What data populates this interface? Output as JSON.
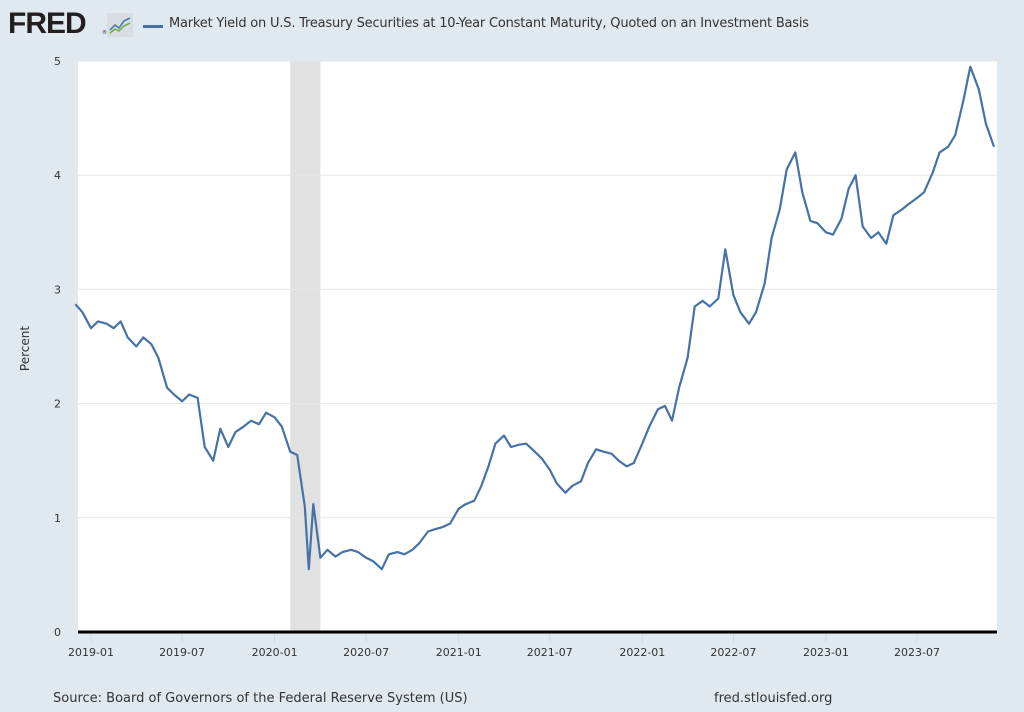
{
  "header": {
    "logo_text": "FRED",
    "logo_registered": "®",
    "logo_icon": "chart-line-icon",
    "legend_label": "Market Yield on U.S. Treasury Securities at 10-Year Constant Maturity, Quoted on an Investment Basis"
  },
  "footer": {
    "source": "Source: Board of Governors of the Federal Reserve System (US)",
    "site": "fred.stlouisfed.org"
  },
  "colors": {
    "series": "#4572a7",
    "background": "#e1e9f0",
    "plot_background": "#ffffff",
    "gridline": "#e6e6e6",
    "recession": "#e1e1e1",
    "zero_line": "#000000"
  },
  "chart_data": {
    "type": "line",
    "title": "Market Yield on U.S. Treasury Securities at 10-Year Constant Maturity, Quoted on an Investment Basis",
    "xlabel": "",
    "ylabel": "Percent",
    "ylim": [
      0,
      5
    ],
    "yticks": [
      "0",
      "1",
      "2",
      "3",
      "4",
      "5"
    ],
    "xlim": [
      "2018-12",
      "2023-12"
    ],
    "xticks": [
      "2019-01",
      "2019-07",
      "2020-01",
      "2020-07",
      "2021-01",
      "2021-07",
      "2022-01",
      "2022-07",
      "2023-01",
      "2023-07"
    ],
    "grid": true,
    "legend_position": "top",
    "recessions": [
      {
        "start": "2020-02",
        "end": "2020-04"
      }
    ],
    "series": [
      {
        "name": "Market Yield on U.S. Treasury Securities at 10-Year Constant Maturity, Quoted on an Investment Basis",
        "x": [
          "2018-12-01",
          "2018-12-15",
          "2019-01-01",
          "2019-01-15",
          "2019-02-01",
          "2019-02-15",
          "2019-03-01",
          "2019-03-15",
          "2019-04-01",
          "2019-04-15",
          "2019-05-01",
          "2019-05-15",
          "2019-06-01",
          "2019-06-15",
          "2019-07-01",
          "2019-07-15",
          "2019-08-01",
          "2019-08-15",
          "2019-09-01",
          "2019-09-15",
          "2019-10-01",
          "2019-10-15",
          "2019-11-01",
          "2019-11-15",
          "2019-12-01",
          "2019-12-15",
          "2020-01-01",
          "2020-01-15",
          "2020-02-01",
          "2020-02-15",
          "2020-03-01",
          "2020-03-09",
          "2020-03-18",
          "2020-04-01",
          "2020-04-15",
          "2020-05-01",
          "2020-05-15",
          "2020-06-01",
          "2020-06-15",
          "2020-07-01",
          "2020-07-15",
          "2020-08-01",
          "2020-08-15",
          "2020-09-01",
          "2020-09-15",
          "2020-10-01",
          "2020-10-15",
          "2020-11-01",
          "2020-11-15",
          "2020-12-01",
          "2020-12-15",
          "2021-01-01",
          "2021-01-15",
          "2021-02-01",
          "2021-02-15",
          "2021-03-01",
          "2021-03-15",
          "2021-04-01",
          "2021-04-15",
          "2021-05-01",
          "2021-05-15",
          "2021-06-01",
          "2021-06-15",
          "2021-07-01",
          "2021-07-15",
          "2021-08-01",
          "2021-08-15",
          "2021-09-01",
          "2021-09-15",
          "2021-10-01",
          "2021-10-15",
          "2021-11-01",
          "2021-11-15",
          "2021-12-01",
          "2021-12-15",
          "2022-01-01",
          "2022-01-15",
          "2022-02-01",
          "2022-02-15",
          "2022-03-01",
          "2022-03-15",
          "2022-04-01",
          "2022-04-15",
          "2022-05-01",
          "2022-05-15",
          "2022-06-01",
          "2022-06-15",
          "2022-07-01",
          "2022-07-15",
          "2022-08-01",
          "2022-08-15",
          "2022-09-01",
          "2022-09-15",
          "2022-10-01",
          "2022-10-15",
          "2022-11-01",
          "2022-11-15",
          "2022-12-01",
          "2022-12-15",
          "2023-01-01",
          "2023-01-15",
          "2023-02-01",
          "2023-02-15",
          "2023-03-01",
          "2023-03-15",
          "2023-04-01",
          "2023-04-15",
          "2023-05-01",
          "2023-05-15",
          "2023-06-01",
          "2023-06-15",
          "2023-07-01",
          "2023-07-15",
          "2023-08-01",
          "2023-08-15",
          "2023-09-01",
          "2023-09-15",
          "2023-10-01",
          "2023-10-15",
          "2023-11-01",
          "2023-11-15",
          "2023-12-01"
        ],
        "values": [
          2.87,
          2.8,
          2.66,
          2.72,
          2.7,
          2.66,
          2.72,
          2.58,
          2.5,
          2.58,
          2.52,
          2.4,
          2.14,
          2.08,
          2.02,
          2.08,
          2.05,
          1.62,
          1.5,
          1.78,
          1.62,
          1.75,
          1.8,
          1.85,
          1.82,
          1.92,
          1.88,
          1.8,
          1.58,
          1.55,
          1.1,
          0.55,
          1.12,
          0.65,
          0.72,
          0.66,
          0.7,
          0.72,
          0.7,
          0.65,
          0.62,
          0.55,
          0.68,
          0.7,
          0.68,
          0.72,
          0.78,
          0.88,
          0.9,
          0.92,
          0.95,
          1.08,
          1.12,
          1.15,
          1.28,
          1.45,
          1.65,
          1.72,
          1.62,
          1.64,
          1.65,
          1.58,
          1.52,
          1.42,
          1.3,
          1.22,
          1.28,
          1.32,
          1.48,
          1.6,
          1.58,
          1.56,
          1.5,
          1.45,
          1.48,
          1.65,
          1.8,
          1.95,
          1.98,
          1.85,
          2.14,
          2.4,
          2.85,
          2.9,
          2.85,
          2.92,
          3.35,
          2.95,
          2.8,
          2.7,
          2.8,
          3.05,
          3.45,
          3.7,
          4.05,
          4.2,
          3.85,
          3.6,
          3.58,
          3.5,
          3.48,
          3.62,
          3.88,
          4.0,
          3.55,
          3.45,
          3.5,
          3.4,
          3.65,
          3.7,
          3.75,
          3.8,
          3.85,
          4.02,
          4.2,
          4.25,
          4.35,
          4.65,
          4.95,
          4.75,
          4.45,
          4.25
        ]
      }
    ]
  }
}
